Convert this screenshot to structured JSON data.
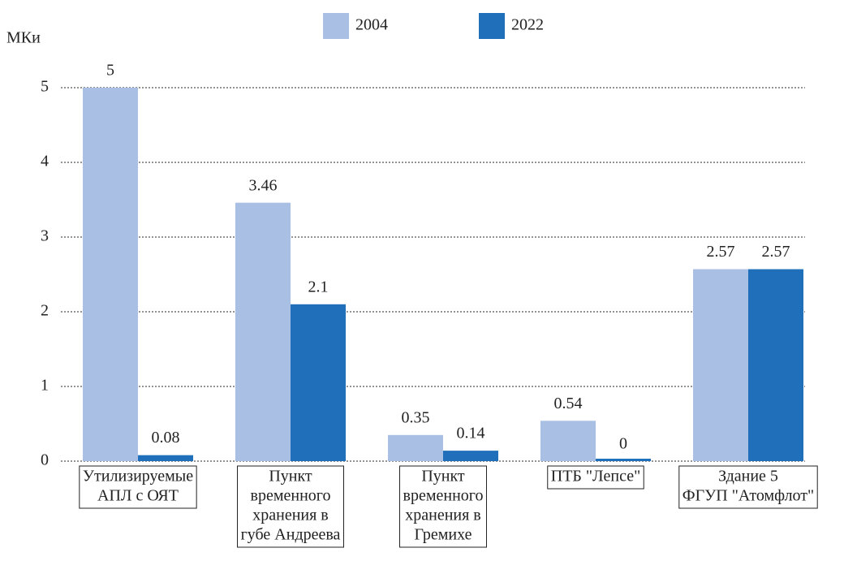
{
  "chart_data": {
    "type": "bar",
    "y_label": "МКи",
    "categories": [
      [
        "Утилизируемые",
        "АПЛ с ОЯТ"
      ],
      [
        "Пункт",
        "временного",
        "хранения в",
        "губе Андреева"
      ],
      [
        "Пункт",
        "временного",
        "хранения в",
        "Гремихе"
      ],
      [
        "ПТБ \"Лепсе\""
      ],
      [
        "Здание 5",
        "ФГУП \"Атомфлот\""
      ]
    ],
    "series": [
      {
        "name": "2004",
        "color": "#a9bfe3",
        "values": [
          5,
          3.46,
          0.35,
          0.54,
          2.57
        ]
      },
      {
        "name": "2022",
        "color": "#1f6fba",
        "values": [
          0.08,
          2.1,
          0.14,
          0,
          2.57
        ]
      }
    ],
    "ylim": [
      0,
      5
    ],
    "yticks": [
      0,
      1,
      2,
      3,
      4,
      5
    ],
    "grid": true,
    "legend": "top"
  }
}
